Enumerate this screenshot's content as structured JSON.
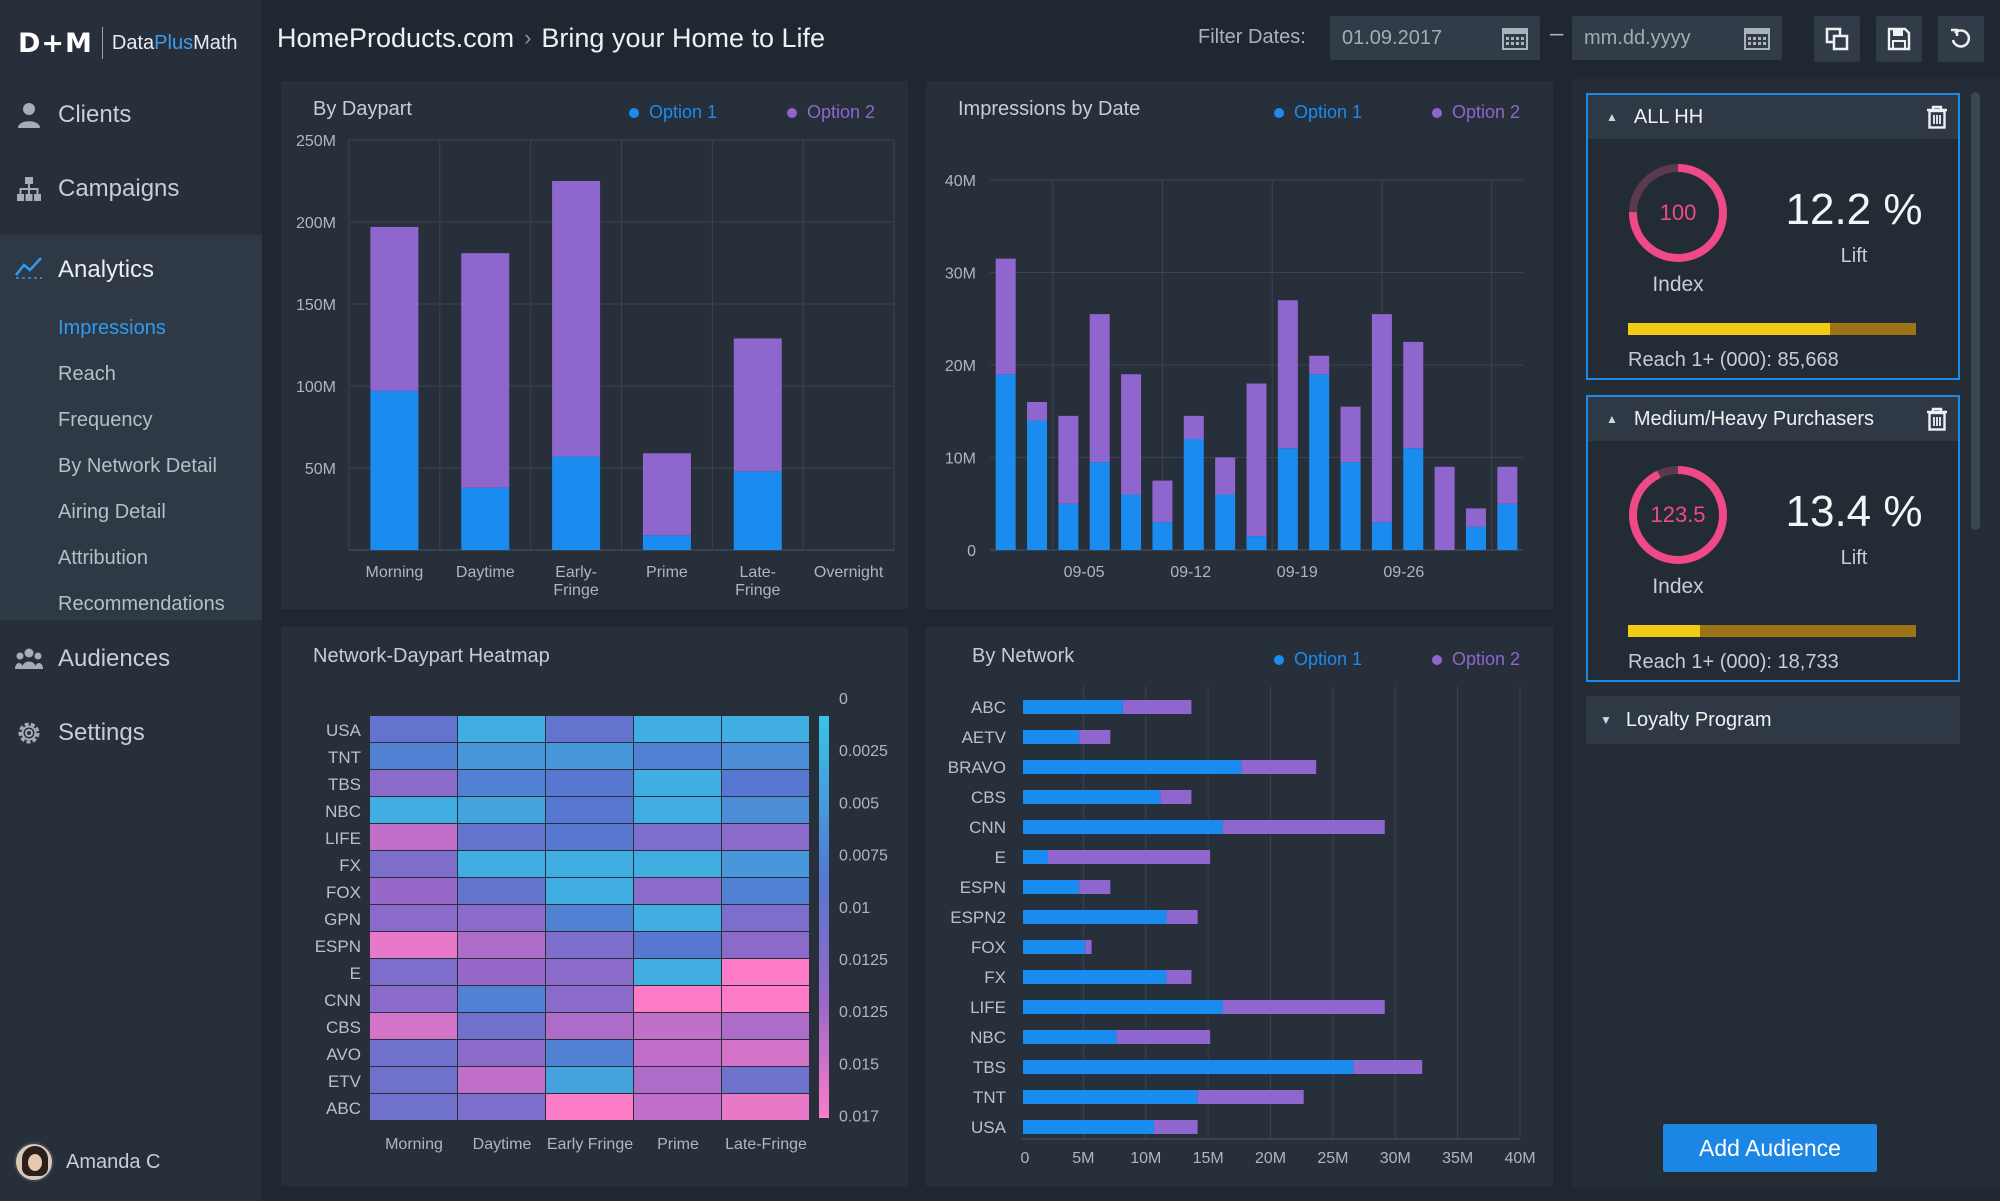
{
  "brand": {
    "mark": "D+M",
    "name_a": "Data",
    "name_b": "Plus",
    "name_c": "Math"
  },
  "nav": {
    "clients": "Clients",
    "campaigns": "Campaigns",
    "analytics": "Analytics",
    "sub": [
      "Impressions",
      "Reach",
      "Frequency",
      "By Network Detail",
      "Airing Detail",
      "Attribution",
      "Recommendations"
    ],
    "audiences": "Audiences",
    "settings": "Settings"
  },
  "user": {
    "name": "Amanda C"
  },
  "header": {
    "site": "HomeProducts.com",
    "campaign": "Bring your Home to Life",
    "filter_label": "Filter Dates:",
    "date_start": "01.09.2017",
    "date_end_placeholder": "mm.dd.yyyy"
  },
  "colors": {
    "option1": "#1a8cf0",
    "option2": "#8f66cd",
    "bg": "#1f2731",
    "panel": "#272f3a",
    "accent": "#1e8ae8",
    "index": "#ef4a86",
    "reach_fill": "#f2cb12",
    "reach_track": "#9c7416"
  },
  "panels": {
    "daypart": {
      "title": "By Daypart",
      "legend": [
        "Option 1",
        "Option 2"
      ]
    },
    "impressions": {
      "title": "Impressions by Date",
      "legend": [
        "Option 1",
        "Option 2"
      ]
    },
    "heatmap": {
      "title": "Network-Daypart Heatmap"
    },
    "network": {
      "title": "By Network",
      "legend": [
        "Option 1",
        "Option 2"
      ]
    }
  },
  "chart_data": [
    {
      "type": "bar",
      "stacked": true,
      "title": "By Daypart",
      "categories": [
        "Morning",
        "Daytime",
        "Early-\nFringe",
        "Prime",
        "Late-\nFringe",
        "Overnight"
      ],
      "series": [
        {
          "name": "Option 1",
          "values": [
            97,
            38,
            57,
            9,
            48,
            0
          ]
        },
        {
          "name": "Option 2",
          "values": [
            100,
            143,
            168,
            50,
            81,
            0
          ]
        }
      ],
      "yticks": [
        "50M",
        "100M",
        "150M",
        "200M",
        "250M"
      ],
      "ylim": [
        0,
        250
      ]
    },
    {
      "type": "bar",
      "stacked": true,
      "title": "Impressions by Date",
      "xticks": [
        "09-05",
        "09-12",
        "09-19",
        "09-26"
      ],
      "series": [
        {
          "name": "Option 1",
          "values": [
            19,
            14,
            5,
            9.5,
            6,
            3,
            12,
            6,
            1.5,
            11,
            19,
            9.5,
            3,
            11,
            0,
            2.5,
            5
          ]
        },
        {
          "name": "Option 2",
          "values": [
            12.5,
            2,
            9.5,
            16,
            13,
            4.5,
            2.5,
            4,
            16.5,
            16,
            2,
            6,
            22.5,
            11.5,
            9,
            2,
            4
          ]
        }
      ],
      "yticks": [
        "0",
        "10M",
        "20M",
        "30M",
        "40M"
      ],
      "ylim": [
        0,
        40
      ]
    },
    {
      "type": "heatmap",
      "title": "Network-Daypart Heatmap",
      "rows": [
        "USA",
        "TNT",
        "TBS",
        "NBC",
        "LIFE",
        "FX",
        "FOX",
        "GPN",
        "ESPN",
        "E",
        "CNN",
        "CBS",
        "AVO",
        "ETV",
        "ABC"
      ],
      "columns": [
        "Morning",
        "Daytime",
        "Early Fringe",
        "Prime",
        "Late-Fringe"
      ],
      "scale_labels": [
        "0",
        "0.0025",
        "0.005",
        "0.0075",
        "0.01",
        "0.0125",
        "0.0125",
        "0.015",
        "0.017"
      ],
      "values": [
        [
          0.008,
          0.002,
          0.008,
          0.002,
          0.002
        ],
        [
          0.006,
          0.004,
          0.004,
          0.006,
          0.005
        ],
        [
          0.011,
          0.006,
          0.007,
          0.002,
          0.007
        ],
        [
          0.002,
          0.003,
          0.007,
          0.002,
          0.005
        ],
        [
          0.014,
          0.008,
          0.007,
          0.01,
          0.011
        ],
        [
          0.01,
          0.002,
          0.002,
          0.002,
          0.004
        ],
        [
          0.012,
          0.008,
          0.002,
          0.011,
          0.006
        ],
        [
          0.011,
          0.011,
          0.006,
          0.002,
          0.01
        ],
        [
          0.016,
          0.013,
          0.01,
          0.007,
          0.011
        ],
        [
          0.01,
          0.012,
          0.011,
          0.002,
          0.017
        ],
        [
          0.011,
          0.006,
          0.011,
          0.017,
          0.017
        ],
        [
          0.015,
          0.009,
          0.013,
          0.014,
          0.013
        ],
        [
          0.009,
          0.011,
          0.006,
          0.014,
          0.015
        ],
        [
          0.009,
          0.014,
          0.003,
          0.013,
          0.009
        ],
        [
          0.009,
          0.01,
          0.017,
          0.014,
          0.016
        ]
      ],
      "vlim": [
        0,
        0.017
      ]
    },
    {
      "type": "bar",
      "orientation": "horizontal",
      "stacked": true,
      "title": "By Network",
      "categories": [
        "ABC",
        "AETV",
        "BRAVO",
        "CBS",
        "CNN",
        "E",
        "ESPN",
        "ESPN2",
        "FOX",
        "FX",
        "LIFE",
        "NBC",
        "TBS",
        "TNT",
        "USA"
      ],
      "series": [
        {
          "name": "Option 1",
          "values": [
            8,
            4.5,
            17.5,
            11,
            16,
            2,
            4.5,
            11.5,
            5,
            11.5,
            16,
            7.5,
            26.5,
            14,
            10.5
          ]
        },
        {
          "name": "Option 2",
          "values": [
            5.5,
            2.5,
            6,
            2.5,
            13,
            13,
            2.5,
            2.5,
            0.5,
            2,
            13,
            7.5,
            5.5,
            8.5,
            3.5
          ]
        }
      ],
      "xticks": [
        "0",
        "5M",
        "10M",
        "15M",
        "20M",
        "25M",
        "30M",
        "35M",
        "40M"
      ],
      "xlim": [
        0,
        40
      ]
    }
  ],
  "audiences": [
    {
      "name": "ALL HH",
      "index": "100",
      "index_value": 100,
      "lift": "12.2 %",
      "lift_label": "Lift",
      "index_label": "Index",
      "reach": "Reach 1+ (000): 85,668",
      "reach_fraction": 0.7
    },
    {
      "name": "Medium/Heavy Purchasers",
      "index": "123.5",
      "index_value": 123.5,
      "lift": "13.4 %",
      "lift_label": "Lift",
      "index_label": "Index",
      "reach": "Reach 1+ (000): 18,733",
      "reach_fraction": 0.25
    }
  ],
  "loyalty": "Loyalty Program",
  "add_audience": "Add Audience"
}
